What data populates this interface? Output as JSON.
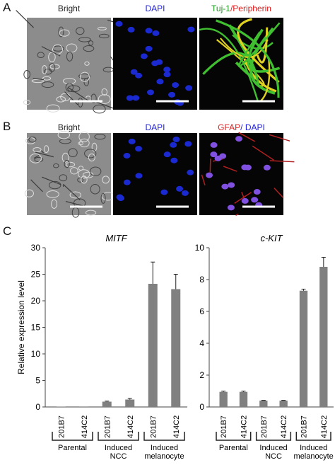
{
  "panels": [
    {
      "label": "A",
      "images": [
        {
          "label": [
            {
              "text": "Bright",
              "color": "#222222"
            }
          ]
        },
        {
          "label": [
            {
              "text": "DAPI",
              "color": "#2020e0"
            }
          ]
        },
        {
          "label": [
            {
              "text": "Tuj-1",
              "color": "#1f9a1f"
            },
            {
              "text": "/Peripherin",
              "color": "#e02020"
            }
          ]
        }
      ]
    },
    {
      "label": "B",
      "images": [
        {
          "label": [
            {
              "text": "Bright",
              "color": "#222222"
            }
          ]
        },
        {
          "label": [
            {
              "text": "DAPI",
              "color": "#2020e0"
            }
          ]
        },
        {
          "label": [
            {
              "text": "GFAP",
              "color": "#e02020"
            },
            {
              "text": "/ DAPI",
              "color": "#2020e0"
            }
          ]
        }
      ]
    }
  ],
  "chart_panel_label": "C",
  "chart_data": [
    {
      "type": "bar",
      "title": "MITF",
      "ylabel": "Relative expression level",
      "categories": [
        "201B7",
        "414C2",
        "201B7",
        "414C2",
        "201B7",
        "414C2"
      ],
      "groups": [
        {
          "name": [
            "Parental"
          ]
        },
        {
          "name": [
            "Induced",
            "NCC"
          ]
        },
        {
          "name": [
            "Induced",
            "melanocyte"
          ]
        }
      ],
      "values": [
        0.05,
        0.03,
        1.0,
        1.4,
        23.2,
        22.2
      ],
      "errors": [
        0,
        0,
        0.1,
        0.2,
        4.1,
        2.8
      ],
      "color": "#808080",
      "ylim": [
        0,
        30
      ],
      "yticks": [
        0,
        5,
        10,
        15,
        20,
        25,
        30
      ]
    },
    {
      "type": "bar",
      "title": "c-KIT",
      "categories": [
        "201B7",
        "414C2",
        "201B7",
        "414C2",
        "201B7",
        "414C2"
      ],
      "groups": [
        {
          "name": [
            "Parental"
          ]
        },
        {
          "name": [
            "Induced",
            "NCC"
          ]
        },
        {
          "name": [
            "Induced",
            "melanocyte"
          ]
        }
      ],
      "values": [
        0.95,
        0.95,
        0.4,
        0.4,
        7.3,
        8.8
      ],
      "errors": [
        0.05,
        0.05,
        0.02,
        0.02,
        0.1,
        0.6
      ],
      "color": "#808080",
      "ylim": [
        0,
        10
      ],
      "yticks": [
        0,
        2,
        4,
        6,
        8,
        10
      ]
    }
  ]
}
